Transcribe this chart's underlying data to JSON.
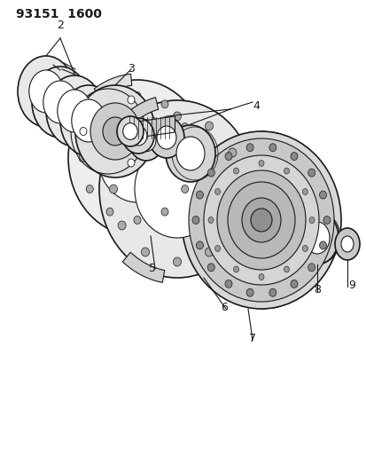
{
  "title": "93151  1600",
  "background_color": "#ffffff",
  "line_color": "#1a1a1a",
  "fig_width": 4.14,
  "fig_height": 5.33,
  "dpi": 100
}
